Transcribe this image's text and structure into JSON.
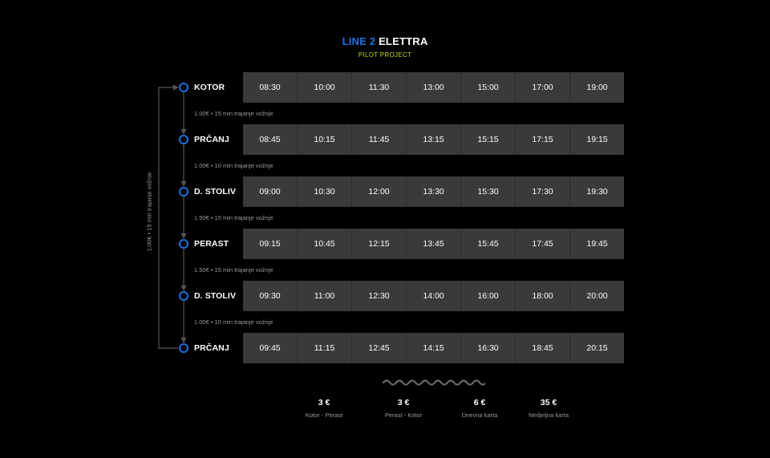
{
  "header": {
    "line": "LINE 2",
    "name": "ELETTRA",
    "subtitle": "PILOT PROJECT"
  },
  "colors": {
    "accent_blue": "#1f6fe0",
    "subtitle_yellow": "#c8d41e",
    "cell_background": "#3a3a3a",
    "muted_text": "#9a9a9a",
    "route_line": "#555555"
  },
  "stops": [
    {
      "name": "KOTOR",
      "times": [
        "08:30",
        "10:00",
        "11:30",
        "13:00",
        "15:00",
        "17:00",
        "19:00"
      ]
    },
    {
      "name": "PRČANJ",
      "times": [
        "08:45",
        "10:15",
        "11:45",
        "13:15",
        "15:15",
        "17:15",
        "19:15"
      ]
    },
    {
      "name": "D. STOLIV",
      "times": [
        "09:00",
        "10:30",
        "12:00",
        "13:30",
        "15:30",
        "17:30",
        "19:30"
      ]
    },
    {
      "name": "PERAST",
      "times": [
        "09:15",
        "10:45",
        "12:15",
        "13:45",
        "15:45",
        "17:45",
        "19:45"
      ]
    },
    {
      "name": "D. STOLIV",
      "times": [
        "09:30",
        "11:00",
        "12:30",
        "14:00",
        "16:00",
        "18:00",
        "20:00"
      ]
    },
    {
      "name": "PRČANJ",
      "times": [
        "09:45",
        "11:15",
        "12:45",
        "14:15",
        "16:30",
        "18:45",
        "20:15"
      ]
    }
  ],
  "segments": [
    "1.00€ • 15 min trajanje vožnje",
    "1.00€ • 10 min trajanje vožnje",
    "1.50€ • 15 min trajanje vožnje",
    "1.50€ • 15 min trajanje vožnje",
    "1.00€ • 10 min trajanje vožnje"
  ],
  "loop_label": "1.00€ • 15 min trajanje vožnje",
  "prices": [
    {
      "amount": "3 €",
      "label": "Kotor - Perast"
    },
    {
      "amount": "3 €",
      "label": "Perast - Kotor"
    },
    {
      "amount": "6 €",
      "label": "Dnevna karta"
    },
    {
      "amount": "35 €",
      "label": "Nedjeljna karta"
    }
  ]
}
